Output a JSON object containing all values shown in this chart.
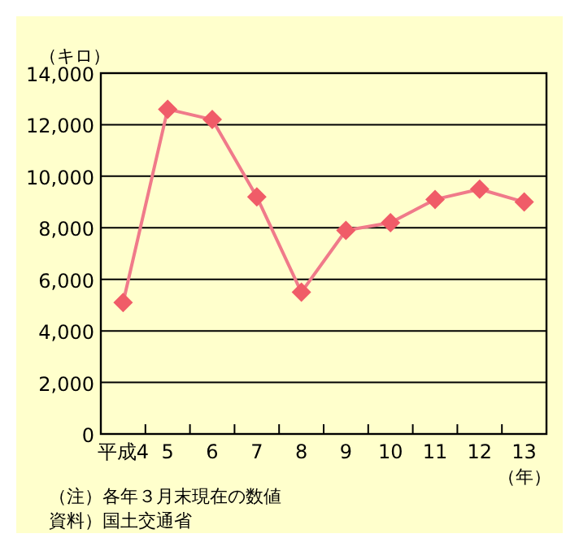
{
  "chart_data": {
    "type": "line",
    "ylabel": "（キロ）",
    "xlabel": "（年）",
    "categories": [
      "平成4",
      "5",
      "6",
      "7",
      "8",
      "9",
      "10",
      "11",
      "12",
      "13"
    ],
    "series": [
      {
        "color": "#f07a8a",
        "values": [
          5100,
          12600,
          12200,
          9200,
          5500,
          7900,
          8200,
          9100,
          9500,
          9000
        ]
      }
    ],
    "ylim": [
      0,
      14000
    ],
    "yticks": [
      0,
      {
        "value": 2000,
        "label": "2,000"
      },
      {
        "value": 4000,
        "label": "4,000"
      },
      {
        "value": 6000,
        "label": "6,000"
      },
      {
        "value": 8000,
        "label": "8,000"
      },
      {
        "value": 10000,
        "label": "10,000"
      },
      {
        "value": 12000,
        "label": "12,000"
      },
      {
        "value": 14000,
        "label": "14,000"
      }
    ],
    "grid": "y",
    "marker": "diamond",
    "annotations": [
      "（注）各年３月末現在の数値",
      "資料）国土交通省"
    ]
  }
}
